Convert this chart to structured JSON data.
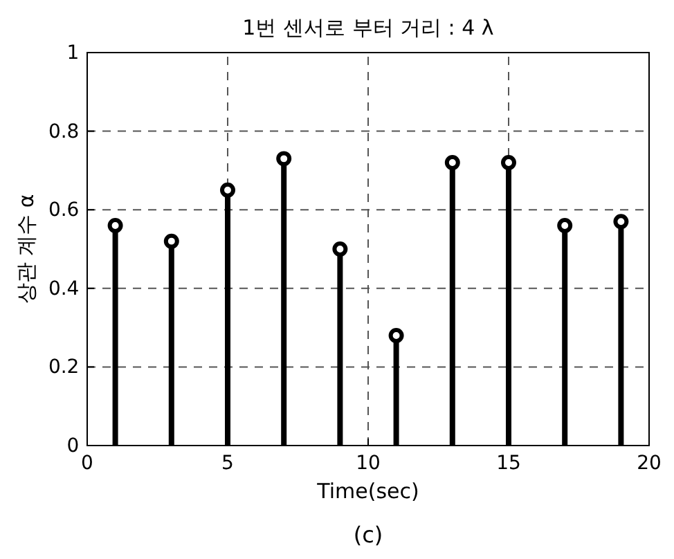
{
  "chart_data": {
    "type": "lollipop",
    "title": "1번 센서로 부터 거리 : 4 λ",
    "xlabel": "Time(sec)",
    "ylabel": "상관 계수 α",
    "x": [
      1,
      3,
      5,
      7,
      9,
      11,
      13,
      15,
      17,
      19
    ],
    "series": [
      {
        "color": "#000000",
        "values": [
          0.56,
          0.52,
          0.65,
          0.73,
          0.5,
          0.28,
          0.72,
          0.72,
          0.56,
          0.57
        ]
      }
    ],
    "xlim": [
      0,
      20
    ],
    "xticks": [
      0,
      5,
      10,
      15,
      20
    ],
    "ylim": [
      0,
      1
    ],
    "yticks": [
      0,
      0.2,
      0.4,
      0.6,
      0.8,
      1
    ],
    "grid": true,
    "marker": "circle",
    "annotations": [
      "(c)"
    ]
  }
}
